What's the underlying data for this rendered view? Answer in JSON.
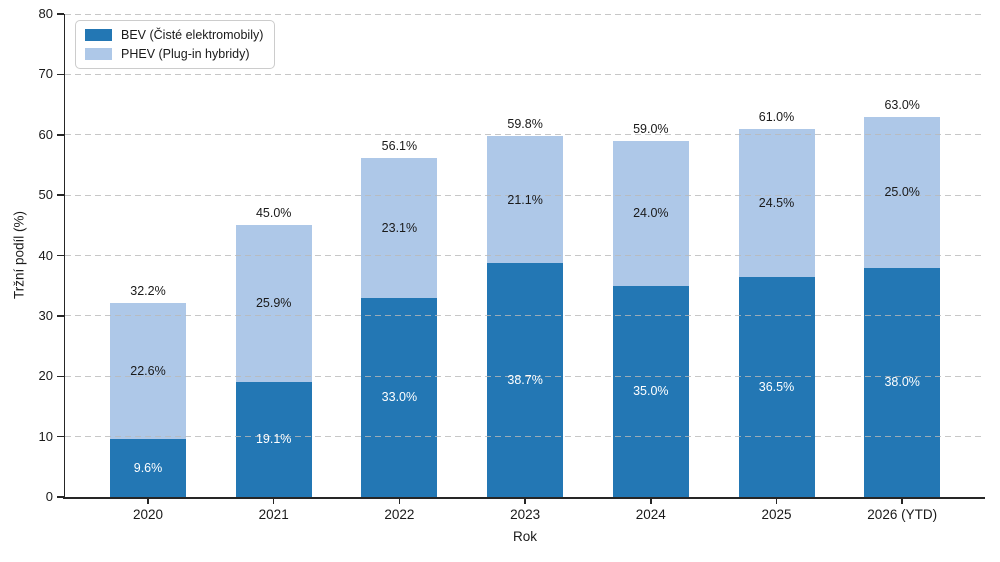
{
  "colors": {
    "background": "#ffffff",
    "axis": "#262626",
    "grid": "#bababa",
    "text": "#1a1a1a",
    "legend_border": "#cccccc",
    "bev_blue": "#2377b4",
    "phev_blue": "#aec8e8"
  },
  "chart_data": {
    "type": "bar",
    "stacked": true,
    "title": "",
    "xlabel": "Rok",
    "ylabel": "Tržní podíl (%)",
    "ylim": [
      0,
      80
    ],
    "yticks": [
      0,
      10,
      20,
      30,
      40,
      50,
      60,
      70,
      80
    ],
    "grid": true,
    "grid_style": "dashed",
    "legend_position": "upper-left",
    "value_suffix": "%",
    "categories": [
      "2020",
      "2021",
      "2022",
      "2023",
      "2024",
      "2025",
      "2026 (YTD)"
    ],
    "series": [
      {
        "name": "BEV (Čisté elektromobily)",
        "color": "#2377b4",
        "label_color": "#ffffff",
        "values": [
          9.6,
          19.1,
          33.0,
          38.7,
          35.0,
          36.5,
          38.0
        ]
      },
      {
        "name": "PHEV (Plug-in hybridy)",
        "color": "#aec8e8",
        "label_color": "#1a1a1a",
        "values": [
          22.6,
          25.9,
          23.1,
          21.1,
          24.0,
          24.5,
          25.0
        ]
      }
    ],
    "totals": [
      32.2,
      45.0,
      56.1,
      59.8,
      59.0,
      61.0,
      63.0
    ],
    "segment_labels": [
      [
        "9.6%",
        "19.1%",
        "33.0%",
        "38.7%",
        "35.0%",
        "36.5%",
        "38.0%"
      ],
      [
        "22.6%",
        "25.9%",
        "23.1%",
        "21.1%",
        "24.0%",
        "24.5%",
        "25.0%"
      ]
    ],
    "total_labels": [
      "32.2%",
      "45.0%",
      "56.1%",
      "59.8%",
      "59.0%",
      "61.0%",
      "63.0%"
    ]
  }
}
